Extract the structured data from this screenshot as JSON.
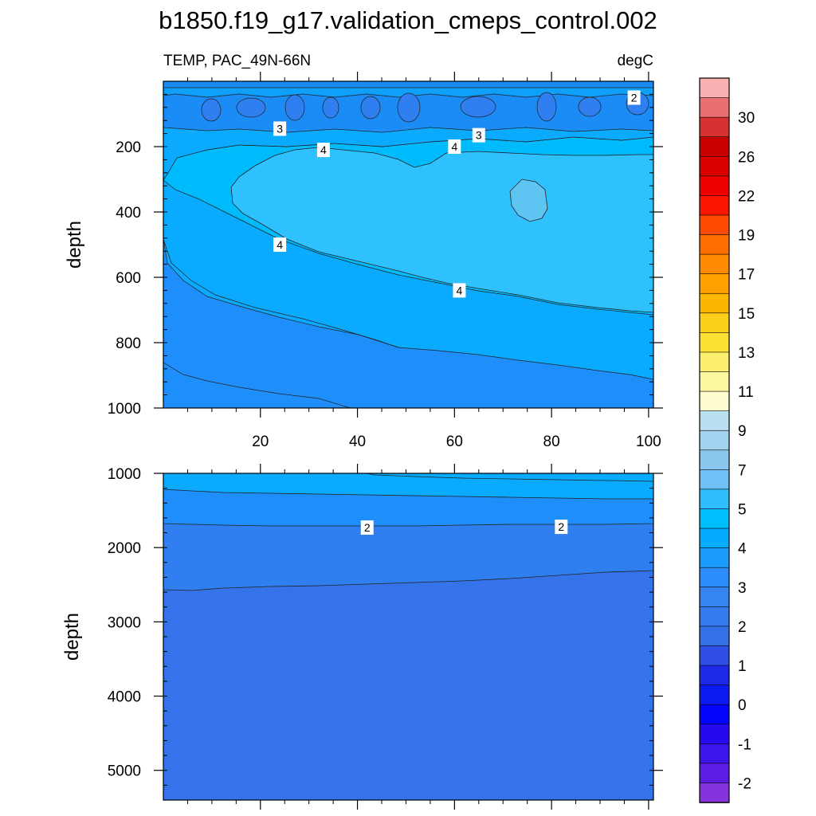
{
  "chart_data": {
    "type": "heatmap",
    "title": "b1850.f19_g17.validation_cmeps_control.002",
    "left_subtitle": "TEMP, PAC_49N-66N",
    "right_subtitle": "degC",
    "colorbar_labels": [
      "30",
      "26",
      "22",
      "19",
      "17",
      "15",
      "13",
      "11",
      "9",
      "7",
      "5",
      "4",
      "3",
      "2",
      "1",
      "0",
      "-1",
      "-2"
    ],
    "colors": {
      "colorbar_top_to_bottom": [
        "#fbb1b1",
        "#e97070",
        "#d93131",
        "#c80000",
        "#da0000",
        "#ee0000",
        "#fc1500",
        "#fd4a00",
        "#fd6e00",
        "#fd8a00",
        "#fda000",
        "#fcb600",
        "#fccf1b",
        "#fde233",
        "#fdef6b",
        "#fdf7a2",
        "#fdfdcf",
        "#badff1",
        "#a3d3ef",
        "#8bc8ef",
        "#6fc1f5",
        "#2ebefd",
        "#00bdfd",
        "#05acfd",
        "#1b9cfd",
        "#2a8dfb",
        "#3484f2",
        "#347bef",
        "#3571e6",
        "#2f4ee6",
        "#1c2ae8",
        "#0d1bf0",
        "#0404fd",
        "#2609f0",
        "#3d14e9",
        "#5c1ce4",
        "#8533dd"
      ],
      "band_0_to_1": "#3573ea",
      "band_1_to_2": "#2f7ff0",
      "band_2_to_3": "#1e8ffa",
      "band_3_to_4": "#0aaaff",
      "band_4_to_5": "#00bbfc",
      "band_5_to_6": "#2fc1fd",
      "band_6_plus": "#5ec4f2"
    },
    "panels": [
      {
        "name": "upper",
        "ylabel": "depth",
        "y_range": [
          0,
          1000
        ],
        "y_ticks": [
          "200",
          "400",
          "600",
          "800",
          "1000"
        ],
        "x_range": [
          0,
          101
        ],
        "x_ticks": [
          "20",
          "40",
          "60",
          "80",
          "100"
        ],
        "contour_labels": [
          {
            "text": "2",
            "x": 97,
            "y": 50
          },
          {
            "text": "3",
            "x": 24,
            "y": 145
          },
          {
            "text": "3",
            "x": 65,
            "y": 165
          },
          {
            "text": "4",
            "x": 33,
            "y": 210
          },
          {
            "text": "4",
            "x": 60,
            "y": 200
          },
          {
            "text": "4",
            "x": 24,
            "y": 500
          },
          {
            "text": "4",
            "x": 61,
            "y": 640
          }
        ]
      },
      {
        "name": "lower",
        "ylabel": "depth",
        "y_range": [
          1000,
          5400
        ],
        "y_ticks": [
          "1000",
          "2000",
          "3000",
          "4000",
          "5000"
        ],
        "x_range": [
          0,
          101
        ],
        "contour_labels": [
          {
            "text": "2",
            "x": 42,
            "y": 1730
          },
          {
            "text": "2",
            "x": 82,
            "y": 1720
          }
        ]
      }
    ]
  }
}
